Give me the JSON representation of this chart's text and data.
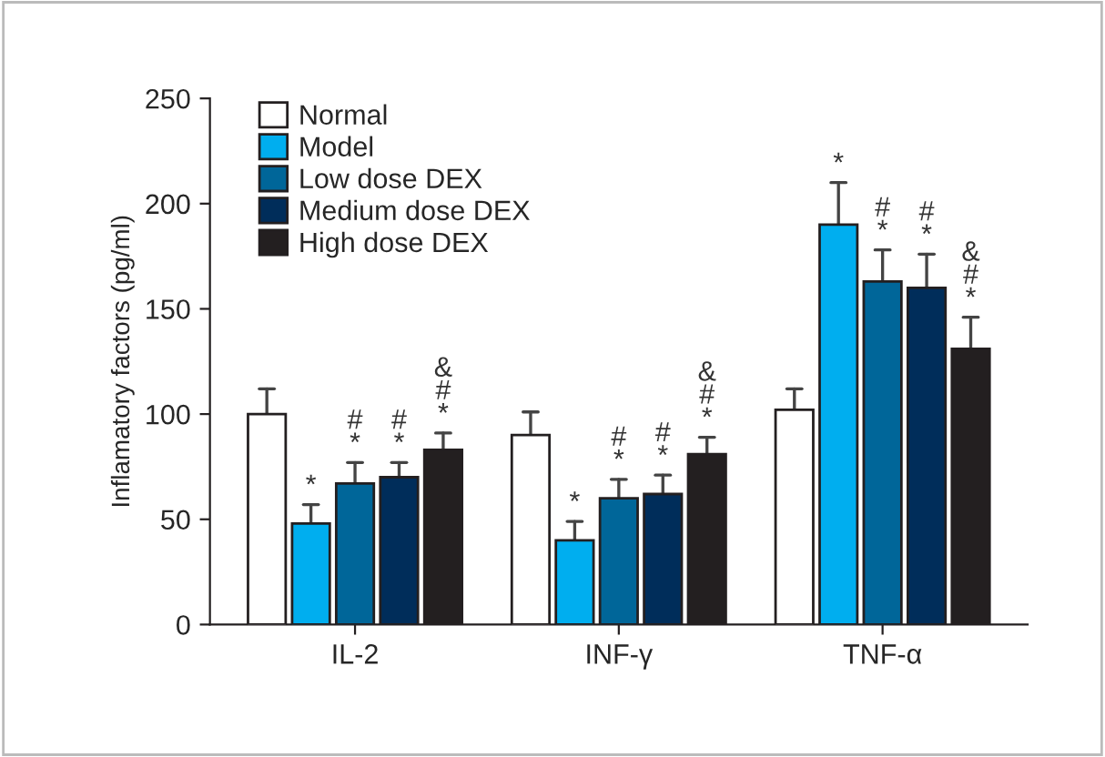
{
  "chart_data": {
    "type": "bar",
    "ylabel": "Inflamatory factors (pg/ml)",
    "categories": [
      "IL-2",
      "INF-γ",
      "TNF-α"
    ],
    "ylim": [
      0,
      250
    ],
    "yticks": [
      0,
      50,
      100,
      150,
      200,
      250
    ],
    "grid": false,
    "legend": "top left",
    "series": [
      {
        "name": "Normal",
        "color": "#ffffff",
        "values": [
          100,
          90,
          102
        ],
        "errors": [
          [
            100,
            112
          ],
          [
            90,
            101
          ],
          [
            102,
            112
          ]
        ],
        "value_labels": [
          null,
          null,
          null
        ]
      },
      {
        "name": "Model",
        "color": "#00aeef",
        "values": [
          48,
          40,
          190
        ],
        "errors": [
          [
            48,
            57
          ],
          [
            40,
            49
          ],
          [
            190,
            210
          ]
        ],
        "value_labels": [
          "*",
          "*",
          "*"
        ]
      },
      {
        "name": "Low dose DEX",
        "color": "#006699",
        "values": [
          67,
          60,
          163
        ],
        "errors": [
          [
            67,
            77
          ],
          [
            60,
            69
          ],
          [
            163,
            178
          ]
        ],
        "value_labels": [
          "#\n*",
          "#\n*",
          "#\n*"
        ]
      },
      {
        "name": "Medium dose DEX",
        "color": "#002d5a",
        "values": [
          70,
          62,
          160
        ],
        "errors": [
          [
            70,
            77
          ],
          [
            62,
            71
          ],
          [
            160,
            176
          ]
        ],
        "value_labels": [
          "#\n*",
          "#\n*",
          "#\n*"
        ]
      },
      {
        "name": "High dose DEX",
        "color": "#231f20",
        "values": [
          83,
          81,
          131
        ],
        "errors": [
          [
            83,
            91
          ],
          [
            81,
            89
          ],
          [
            131,
            146
          ]
        ],
        "value_labels": [
          "&\n#\n*",
          "&\n#\n*",
          "&\n#\n*"
        ]
      }
    ]
  }
}
